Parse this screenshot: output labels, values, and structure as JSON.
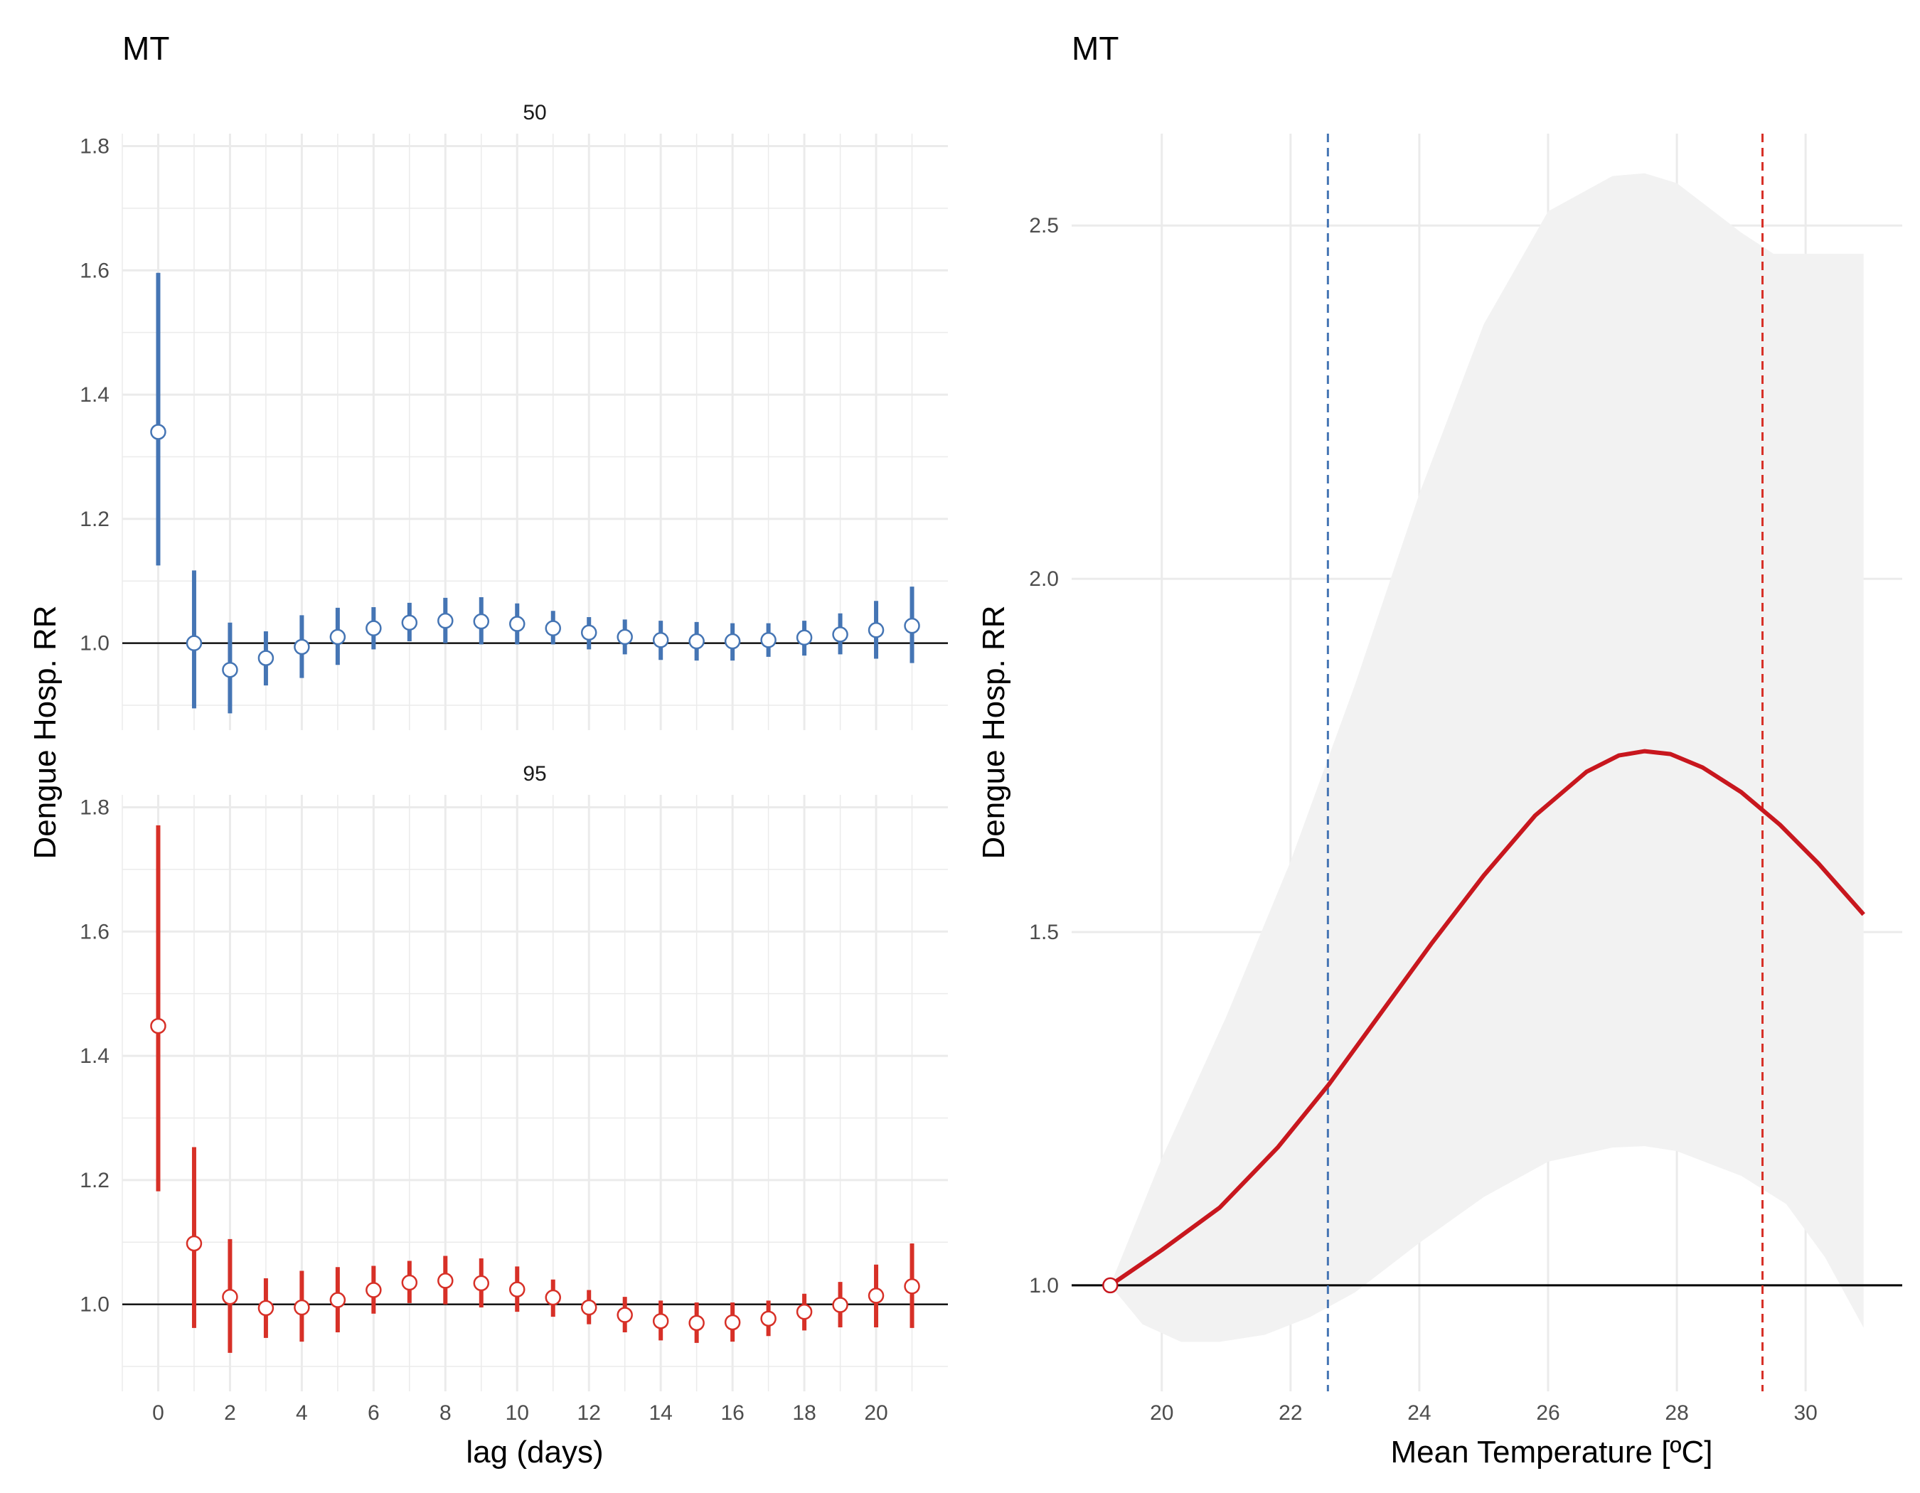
{
  "chart_data": [
    {
      "type": "scatter",
      "title": "MT",
      "xlabel": "lag (days)",
      "ylabel": "Dengue Hosp. RR",
      "x_ticks": [
        0,
        2,
        4,
        6,
        8,
        10,
        12,
        14,
        16,
        18,
        20
      ],
      "y_ticks": [
        1.0,
        1.2,
        1.4,
        1.6,
        1.8
      ],
      "xlim": [
        -1,
        22
      ],
      "ylim": [
        0.86,
        1.82
      ],
      "reference_line": 1.0,
      "grid": true,
      "panels": [
        {
          "strip_label": "50",
          "color": "#4575b4",
          "x": [
            0,
            1,
            2,
            3,
            4,
            5,
            6,
            7,
            8,
            9,
            10,
            11,
            12,
            13,
            14,
            15,
            16,
            17,
            18,
            19,
            20,
            21
          ],
          "estimate": [
            1.34,
            1.0,
            0.957,
            0.976,
            0.994,
            1.01,
            1.024,
            1.033,
            1.036,
            1.035,
            1.031,
            1.024,
            1.017,
            1.01,
            1.005,
            1.003,
            1.003,
            1.005,
            1.009,
            1.014,
            1.021,
            1.028
          ],
          "lower": [
            1.125,
            0.895,
            0.887,
            0.932,
            0.944,
            0.965,
            0.99,
            1.003,
            1.0,
            0.998,
            0.998,
            0.998,
            0.99,
            0.982,
            0.973,
            0.972,
            0.972,
            0.978,
            0.98,
            0.982,
            0.975,
            0.968
          ],
          "upper": [
            1.596,
            1.117,
            1.033,
            1.019,
            1.045,
            1.057,
            1.058,
            1.065,
            1.073,
            1.074,
            1.064,
            1.052,
            1.042,
            1.038,
            1.036,
            1.034,
            1.032,
            1.032,
            1.036,
            1.048,
            1.068,
            1.091
          ]
        },
        {
          "strip_label": "95",
          "color": "#d73027",
          "x": [
            0,
            1,
            2,
            3,
            4,
            5,
            6,
            7,
            8,
            9,
            10,
            11,
            12,
            13,
            14,
            15,
            16,
            17,
            18,
            19,
            20,
            21
          ],
          "estimate": [
            1.448,
            1.098,
            1.012,
            0.994,
            0.995,
            1.007,
            1.023,
            1.035,
            1.038,
            1.034,
            1.024,
            1.011,
            0.995,
            0.983,
            0.973,
            0.97,
            0.971,
            0.977,
            0.988,
            0.999,
            1.014,
            1.029
          ],
          "lower": [
            1.182,
            0.962,
            0.922,
            0.946,
            0.94,
            0.955,
            0.985,
            1.002,
            1.0,
            0.995,
            0.988,
            0.98,
            0.968,
            0.955,
            0.942,
            0.938,
            0.94,
            0.949,
            0.958,
            0.963,
            0.963,
            0.962
          ],
          "upper": [
            1.771,
            1.253,
            1.105,
            1.042,
            1.054,
            1.06,
            1.062,
            1.07,
            1.078,
            1.074,
            1.061,
            1.04,
            1.023,
            1.012,
            1.006,
            1.003,
            1.003,
            1.006,
            1.017,
            1.036,
            1.064,
            1.098
          ]
        }
      ]
    },
    {
      "type": "line",
      "title": "MT",
      "xlabel": "Mean Temperature [ºC]",
      "ylabel": "Dengue Hosp. RR",
      "x_ticks": [
        20,
        22,
        24,
        26,
        28,
        30
      ],
      "y_ticks": [
        1.0,
        1.5,
        2.0,
        2.5
      ],
      "xlim": [
        18.6,
        31.5
      ],
      "ylim": [
        0.85,
        2.63
      ],
      "reference_line": 1.0,
      "grid": true,
      "line_color": "#c8171e",
      "band_color": "#f2f2f2",
      "vlines": [
        {
          "x": 22.58,
          "color": "#4575b4",
          "style": "dashed"
        },
        {
          "x": 29.33,
          "color": "#d73027",
          "style": "dashed"
        }
      ],
      "curve": {
        "x": [
          19.2,
          20.0,
          20.9,
          21.8,
          22.6,
          23.4,
          24.2,
          25.0,
          25.8,
          26.6,
          27.1,
          27.5,
          27.9,
          28.4,
          29.0,
          29.6,
          30.2,
          30.9
        ],
        "y": [
          1.0,
          1.05,
          1.11,
          1.195,
          1.285,
          1.385,
          1.485,
          1.58,
          1.665,
          1.727,
          1.75,
          1.756,
          1.752,
          1.733,
          1.698,
          1.652,
          1.597,
          1.525
        ]
      },
      "ci_upper": {
        "x": [
          19.2,
          20.0,
          21.0,
          22.0,
          23.0,
          24.0,
          25.0,
          26.0,
          27.0,
          27.5,
          28.0,
          29.0,
          29.5,
          30.0,
          30.9
        ],
        "y": [
          1.0,
          1.18,
          1.38,
          1.6,
          1.85,
          2.12,
          2.36,
          2.52,
          2.57,
          2.574,
          2.56,
          2.49,
          2.46,
          2.46,
          2.46
        ]
      },
      "ci_lower": {
        "x": [
          19.2,
          19.7,
          20.3,
          20.9,
          21.6,
          22.3,
          23.0,
          24.0,
          25.0,
          26.0,
          27.0,
          27.5,
          28.0,
          29.0,
          29.7,
          30.3,
          30.9
        ],
        "y": [
          1.0,
          0.945,
          0.92,
          0.92,
          0.93,
          0.955,
          0.99,
          1.06,
          1.125,
          1.175,
          1.195,
          1.197,
          1.19,
          1.155,
          1.115,
          1.04,
          0.94
        ]
      },
      "points": [
        {
          "x": 19.2,
          "y": 1.0
        }
      ]
    }
  ]
}
